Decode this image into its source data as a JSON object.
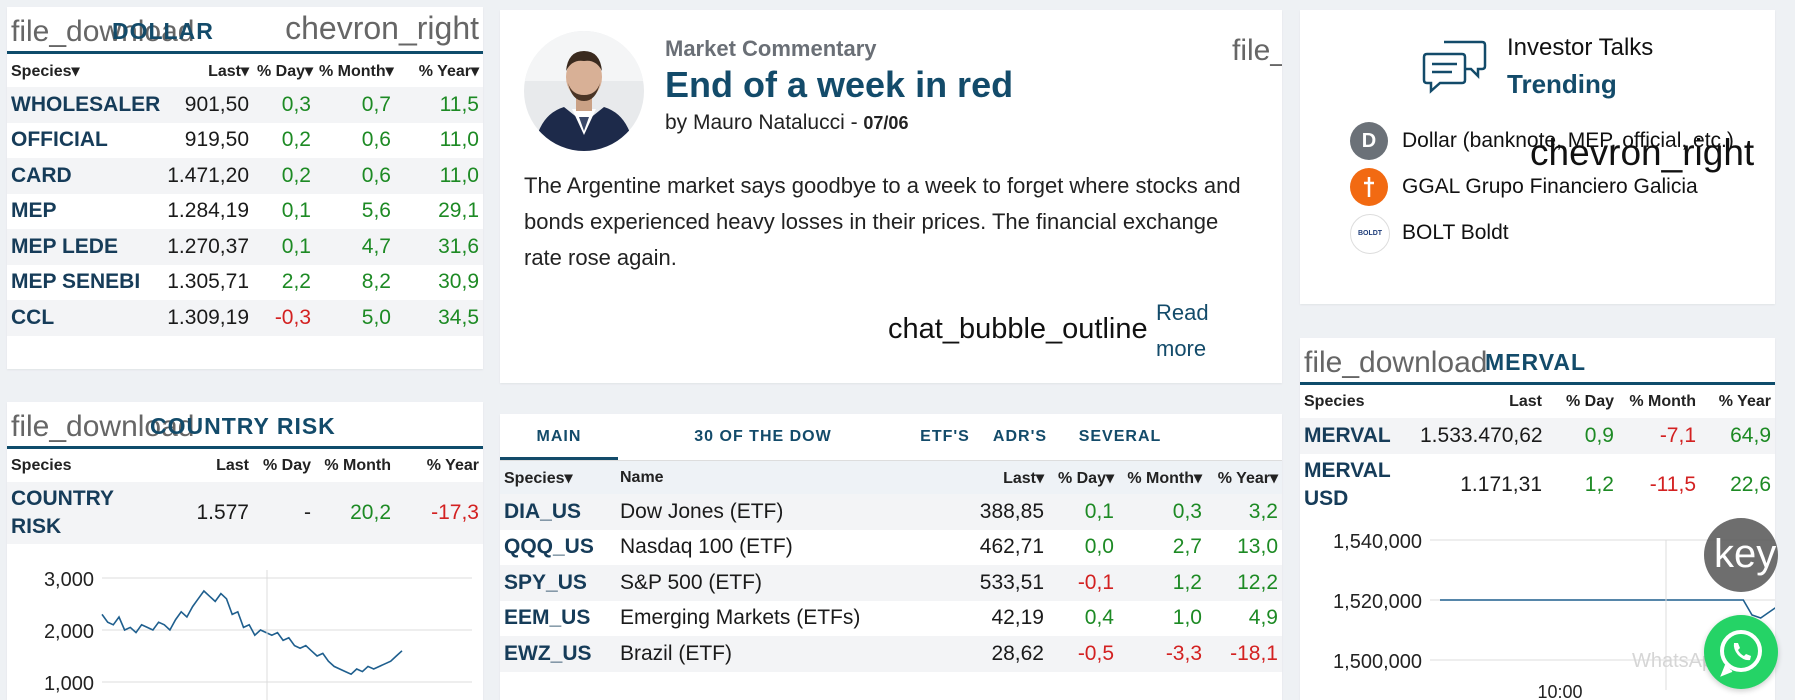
{
  "dollar": {
    "download_text": "file_download",
    "title": "DOLLAR",
    "chevron_text": "chevron_right",
    "headers": [
      "Species▾",
      "Last▾",
      "% Day▾",
      "% Month▾",
      "% Year▾"
    ],
    "rows": [
      {
        "species": "WHOLESALER",
        "last": "901,50",
        "day": "0,3",
        "month": "0,7",
        "year": "11,5"
      },
      {
        "species": "OFFICIAL",
        "last": "919,50",
        "day": "0,2",
        "month": "0,6",
        "year": "11,0"
      },
      {
        "species": "CARD",
        "last": "1.471,20",
        "day": "0,2",
        "month": "0,6",
        "year": "11,0"
      },
      {
        "species": "MEP",
        "last": "1.284,19",
        "day": "0,1",
        "month": "5,6",
        "year": "29,1"
      },
      {
        "species": "MEP LEDE",
        "last": "1.270,37",
        "day": "0,1",
        "month": "4,7",
        "year": "31,6"
      },
      {
        "species": "MEP SENEBI",
        "last": "1.305,71",
        "day": "2,2",
        "month": "8,2",
        "year": "30,9"
      },
      {
        "species": "CCL",
        "last": "1.309,19",
        "day": "-0,3",
        "month": "5,0",
        "year": "34,5"
      }
    ]
  },
  "country_risk": {
    "download_text": "file_download",
    "title": "COUNTRY RISK",
    "headers": [
      "Species",
      "Last",
      "% Day",
      "% Month",
      "% Year"
    ],
    "row": {
      "species": "COUNTRY RISK",
      "last": "1.577",
      "day": "-",
      "month": "20,2",
      "year": "-17,3"
    }
  },
  "commentary": {
    "kicker": "Market Commentary",
    "headline": "End of a week in red",
    "byline": "by Mauro Natalucci - ",
    "date": "07/06",
    "body": "The Argentine market says goodbye to a week to forget where stocks and bonds experienced heavy losses in their prices. The financial exchange rate rose again.",
    "corner_text": "file_",
    "chat_text": "chat_bubble_outline",
    "read_more": "Read more"
  },
  "dow": {
    "tabs": [
      "MAIN",
      "30 OF THE DOW",
      "ETF'S",
      "ADR'S",
      "SEVERAL"
    ],
    "active_tab": 0,
    "headers": [
      "Species▾",
      "Name",
      "Last▾",
      "% Day▾",
      "% Month▾",
      "% Year▾"
    ],
    "rows": [
      {
        "species": "DIA_US",
        "name": "Dow Jones (ETF)",
        "last": "388,85",
        "day": "0,1",
        "month": "0,3",
        "year": "3,2"
      },
      {
        "species": "QQQ_US",
        "name": "Nasdaq 100 (ETF)",
        "last": "462,71",
        "day": "0,0",
        "month": "2,7",
        "year": "13,0"
      },
      {
        "species": "SPY_US",
        "name": "S&P 500 (ETF)",
        "last": "533,51",
        "day": "-0,1",
        "month": "1,2",
        "year": "12,2"
      },
      {
        "species": "EEM_US",
        "name": "Emerging Markets (ETFs)",
        "last": "42,19",
        "day": "0,4",
        "month": "1,0",
        "year": "4,9"
      },
      {
        "species": "EWZ_US",
        "name": "Brazil (ETF)",
        "last": "28,62",
        "day": "-0,5",
        "month": "-3,3",
        "year": "-18,1"
      }
    ]
  },
  "investor_talks": {
    "title": "Investor Talks",
    "subtitle": "Trending",
    "chevron_text": "chevron_right",
    "items": [
      {
        "badge": "D",
        "label": "Dollar (banknote, MEP, official, etc.)",
        "color": "#6b7178"
      },
      {
        "badge": "",
        "label": "GGAL Grupo Financiero Galicia",
        "color": "#f26a12"
      },
      {
        "badge": "BOLDT",
        "label": "BOLT Boldt",
        "color": "#ffffff"
      }
    ]
  },
  "merval": {
    "download_text": "file_download",
    "title": "MERVAL",
    "headers": [
      "Species",
      "Last",
      "% Day",
      "% Month",
      "% Year"
    ],
    "rows": [
      {
        "species": "MERVAL",
        "last": "1.533.470,62",
        "day": "0,9",
        "month": "-7,1",
        "year": "64,9"
      },
      {
        "species": "MERVAL USD",
        "last": "1.171,31",
        "day": "1,2",
        "month": "-11,5",
        "year": "22,6"
      }
    ]
  },
  "floating": {
    "key_text": "key",
    "wa_ghost": "WhatsApp"
  },
  "colors": {
    "brand": "#134b6a",
    "positive": "#1d8a24",
    "negative": "#d32121"
  },
  "chart_data": [
    {
      "type": "line",
      "series": [
        {
          "values": [
            2300,
            2150,
            2100,
            2250,
            2000,
            2050,
            1950,
            2100,
            2050,
            2000,
            2150,
            2100,
            2000,
            2200,
            2350,
            2250,
            2450,
            2600,
            2750,
            2650,
            2550,
            2700,
            2600,
            2300,
            2350,
            2050,
            2100,
            1900,
            2000,
            1950,
            1900,
            1950,
            1800,
            1850,
            1700,
            1650,
            1700,
            1600,
            1500,
            1550,
            1400,
            1300,
            1250,
            1200,
            1150,
            1250,
            1200,
            1300,
            1250,
            1300,
            1350,
            1400,
            1500,
            1600
          ]
        }
      ],
      "yticks": [
        "3,000",
        "2,000",
        "1,000"
      ],
      "ylim": [
        1000,
        3000
      ]
    },
    {
      "type": "line",
      "series": [
        {
          "values": [
            1520000,
            1520000,
            1520000,
            1520000,
            1520000,
            1520000,
            1520000,
            1520000,
            1520000,
            1520000,
            1520000,
            1520000,
            1520000,
            1520000,
            1520000,
            1520000,
            1520000,
            1520000,
            1520000,
            1520000,
            1520000,
            1520000,
            1520000,
            1520000,
            1520000,
            1520000,
            1520000,
            1520000,
            1520000,
            1520000,
            1520000,
            1520000,
            1520000,
            1520000,
            1520000,
            1520000,
            1515000,
            1514000,
            1516000,
            1518000,
            1520000,
            1524000,
            1528000,
            1532000,
            1534000,
            1535000
          ]
        }
      ],
      "yticks": [
        "1,540,000",
        "1,520,000",
        "1,500,000"
      ],
      "xticks": [
        "10:00"
      ],
      "ylim": [
        1500000,
        1540000
      ]
    }
  ]
}
